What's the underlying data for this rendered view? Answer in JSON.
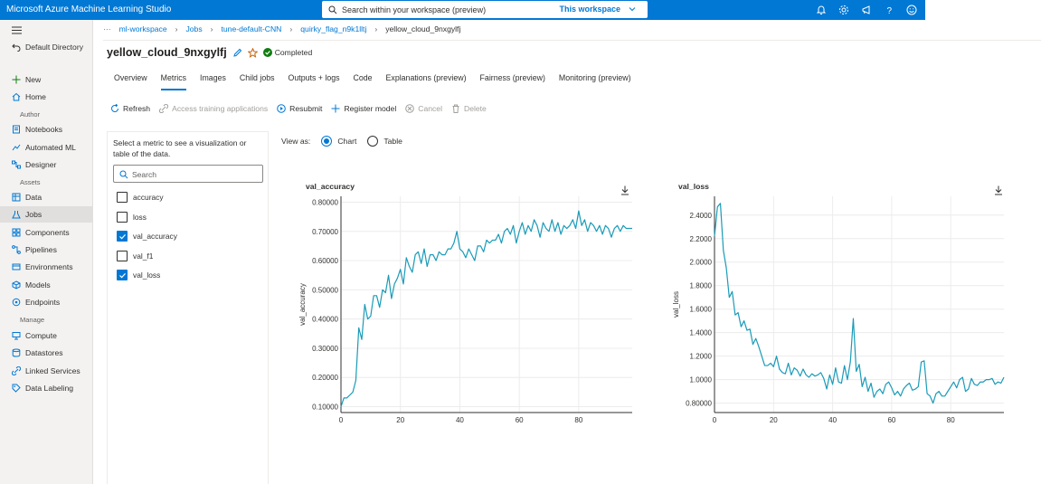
{
  "topbar": {
    "app_title": "Microsoft Azure Machine Learning Studio",
    "search_placeholder": "Search within your workspace (preview)",
    "search_scope": "This workspace"
  },
  "sidebar": {
    "directory": "Default Directory",
    "items_top": [
      {
        "label": "New",
        "icon": "plus-icon"
      },
      {
        "label": "Home",
        "icon": "home-icon"
      }
    ],
    "section_author": "Author",
    "items_author": [
      {
        "label": "Notebooks",
        "icon": "notebook-icon"
      },
      {
        "label": "Automated ML",
        "icon": "automl-icon"
      },
      {
        "label": "Designer",
        "icon": "designer-icon"
      }
    ],
    "section_assets": "Assets",
    "items_assets": [
      {
        "label": "Data",
        "icon": "data-icon"
      },
      {
        "label": "Jobs",
        "icon": "jobs-icon",
        "active": true
      },
      {
        "label": "Components",
        "icon": "components-icon"
      },
      {
        "label": "Pipelines",
        "icon": "pipelines-icon"
      },
      {
        "label": "Environments",
        "icon": "environments-icon"
      },
      {
        "label": "Models",
        "icon": "models-icon"
      },
      {
        "label": "Endpoints",
        "icon": "endpoints-icon"
      }
    ],
    "section_manage": "Manage",
    "items_manage": [
      {
        "label": "Compute",
        "icon": "compute-icon"
      },
      {
        "label": "Datastores",
        "icon": "datastores-icon"
      },
      {
        "label": "Linked Services",
        "icon": "linked-services-icon"
      },
      {
        "label": "Data Labeling",
        "icon": "data-labeling-icon"
      }
    ]
  },
  "breadcrumb": {
    "ellipsis": "···",
    "items": [
      "ml-workspace",
      "Jobs",
      "tune-default-CNN",
      "quirky_flag_n9k1lltj",
      "yellow_cloud_9nxgylfj"
    ]
  },
  "job": {
    "title": "yellow_cloud_9nxgylfj",
    "status": "Completed"
  },
  "tabs": [
    "Overview",
    "Metrics",
    "Images",
    "Child jobs",
    "Outputs + logs",
    "Code",
    "Explanations (preview)",
    "Fairness (preview)",
    "Monitoring (preview)"
  ],
  "active_tab": "Metrics",
  "toolbar": {
    "refresh": "Refresh",
    "access": "Access training applications",
    "resubmit": "Resubmit",
    "register": "Register model",
    "cancel": "Cancel",
    "delete": "Delete"
  },
  "metrics_panel": {
    "description": "Select a metric to see a visualization or table of the data.",
    "search_placeholder": "Search",
    "metrics": [
      {
        "name": "accuracy",
        "checked": false
      },
      {
        "name": "loss",
        "checked": false
      },
      {
        "name": "val_accuracy",
        "checked": true
      },
      {
        "name": "val_f1",
        "checked": false
      },
      {
        "name": "val_loss",
        "checked": true
      }
    ]
  },
  "view_as": {
    "label": "View as:",
    "chart": "Chart",
    "table": "Table",
    "selected": "Chart"
  },
  "colors": {
    "accent": "#0078d4",
    "series": "#1a9bb8",
    "success": "#107c10"
  },
  "chart_data": [
    {
      "type": "line",
      "title": "val_accuracy",
      "ylabel": "val_accuracy",
      "xlabel": "",
      "xlim": [
        0,
        98
      ],
      "ylim": [
        0.08,
        0.82
      ],
      "xticks": [
        0,
        20,
        40,
        60,
        80
      ],
      "yticks": [
        "0.10000",
        "0.20000",
        "0.30000",
        "0.40000",
        "0.50000",
        "0.60000",
        "0.70000",
        "0.80000"
      ],
      "ytick_values": [
        0.1,
        0.2,
        0.3,
        0.4,
        0.5,
        0.6,
        0.7,
        0.8
      ],
      "grid": true,
      "series": [
        {
          "values": [
            0.1,
            0.13,
            0.13,
            0.14,
            0.15,
            0.19,
            0.37,
            0.33,
            0.45,
            0.4,
            0.41,
            0.48,
            0.48,
            0.44,
            0.5,
            0.49,
            0.55,
            0.47,
            0.52,
            0.54,
            0.57,
            0.52,
            0.61,
            0.58,
            0.56,
            0.62,
            0.63,
            0.59,
            0.64,
            0.58,
            0.62,
            0.62,
            0.6,
            0.63,
            0.62,
            0.62,
            0.64,
            0.64,
            0.66,
            0.7,
            0.64,
            0.63,
            0.61,
            0.64,
            0.62,
            0.6,
            0.65,
            0.65,
            0.63,
            0.67,
            0.66,
            0.67,
            0.67,
            0.69,
            0.66,
            0.7,
            0.71,
            0.69,
            0.72,
            0.66,
            0.7,
            0.73,
            0.69,
            0.72,
            0.7,
            0.74,
            0.72,
            0.68,
            0.73,
            0.71,
            0.7,
            0.74,
            0.7,
            0.73,
            0.69,
            0.72,
            0.71,
            0.72,
            0.74,
            0.71,
            0.77,
            0.72,
            0.74,
            0.7,
            0.73,
            0.72,
            0.7,
            0.72,
            0.69,
            0.72,
            0.71,
            0.68,
            0.71,
            0.72,
            0.7,
            0.72,
            0.71,
            0.71,
            0.71
          ]
        }
      ]
    },
    {
      "type": "line",
      "title": "val_loss",
      "ylabel": "val_loss",
      "xlabel": "",
      "xlim": [
        0,
        98
      ],
      "ylim": [
        0.72,
        2.56
      ],
      "xticks": [
        0,
        20,
        40,
        60,
        80
      ],
      "yticks": [
        "0.80000",
        "1.0000",
        "1.2000",
        "1.4000",
        "1.6000",
        "1.8000",
        "2.0000",
        "2.2000",
        "2.4000"
      ],
      "ytick_values": [
        0.8,
        1.0,
        1.2,
        1.4,
        1.6,
        1.8,
        2.0,
        2.2,
        2.4
      ],
      "grid": true,
      "series": [
        {
          "values": [
            2.22,
            2.47,
            2.5,
            2.1,
            1.95,
            1.7,
            1.75,
            1.55,
            1.57,
            1.45,
            1.5,
            1.42,
            1.43,
            1.3,
            1.35,
            1.28,
            1.2,
            1.12,
            1.12,
            1.14,
            1.11,
            1.2,
            1.09,
            1.06,
            1.05,
            1.14,
            1.04,
            1.1,
            1.08,
            1.03,
            1.09,
            1.04,
            1.02,
            1.05,
            1.03,
            1.04,
            1.06,
            1.01,
            0.92,
            1.04,
            0.96,
            1.1,
            0.98,
            0.97,
            1.12,
            1.0,
            1.15,
            1.52,
            1.07,
            1.13,
            0.94,
            1.02,
            0.9,
            0.97,
            0.85,
            0.9,
            0.92,
            0.88,
            0.96,
            0.98,
            0.93,
            0.87,
            0.9,
            0.86,
            0.92,
            0.95,
            0.97,
            0.91,
            0.92,
            0.94,
            1.15,
            1.16,
            0.88,
            0.86,
            0.8,
            0.88,
            0.9,
            0.86,
            0.86,
            0.9,
            0.94,
            0.98,
            0.93,
            1.0,
            1.02,
            0.9,
            0.92,
            1.01,
            0.96,
            0.95,
            0.98,
            0.98,
            1.0,
            1.0,
            1.01,
            0.96,
            0.98,
            0.97,
            1.02
          ]
        }
      ]
    }
  ]
}
